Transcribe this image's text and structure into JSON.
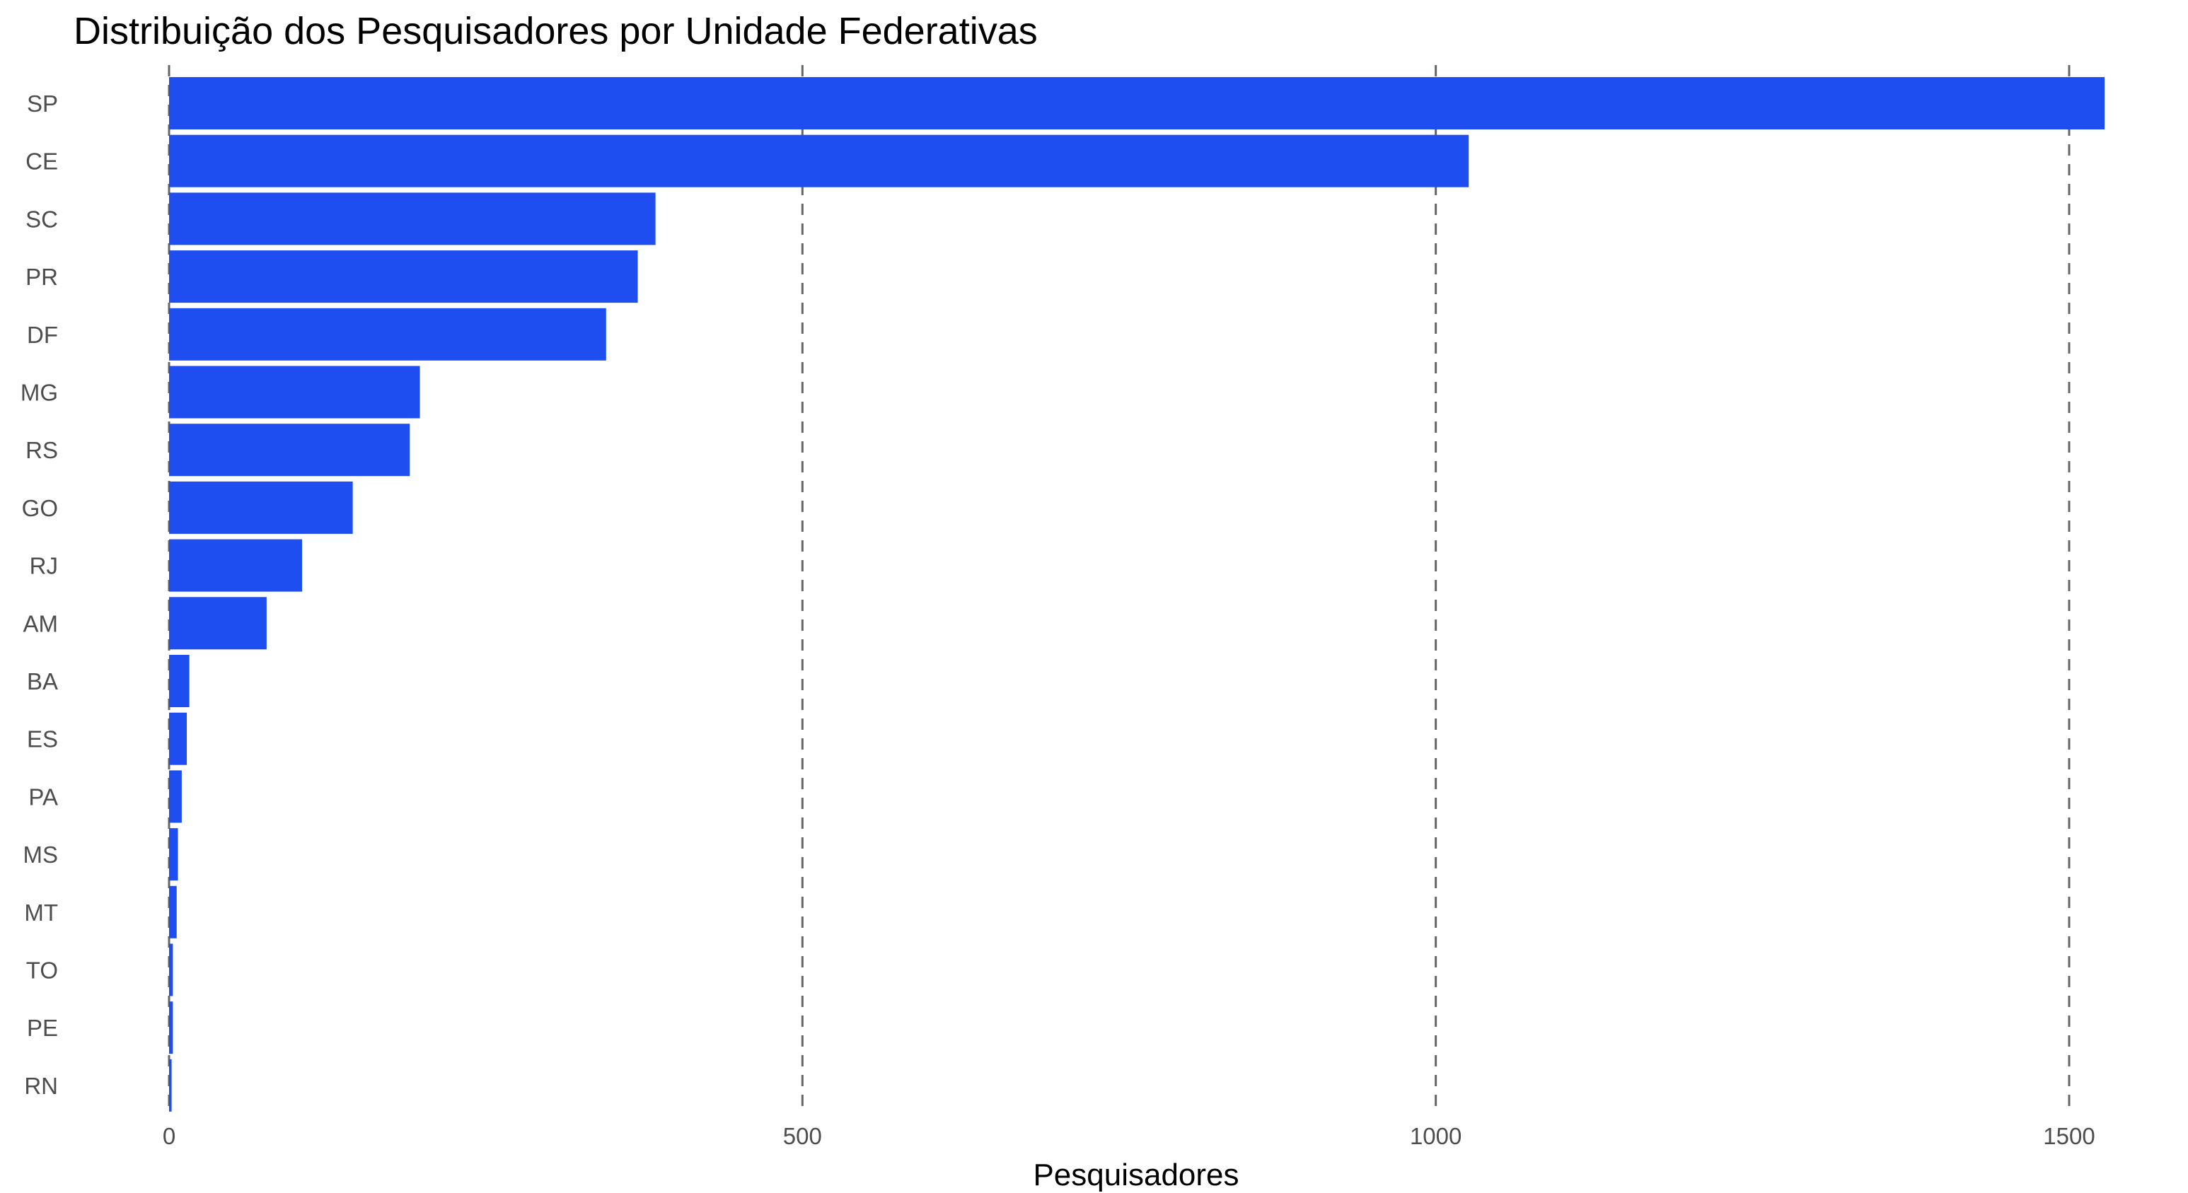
{
  "chart_data": {
    "type": "bar",
    "orientation": "horizontal",
    "title": "Distribuição dos Pesquisadores por Unidade Federativas",
    "xlabel": "Pesquisadores",
    "ylabel": "",
    "categories": [
      "SP",
      "CE",
      "SC",
      "PR",
      "DF",
      "MG",
      "RS",
      "GO",
      "RJ",
      "AM",
      "BA",
      "ES",
      "PA",
      "MS",
      "MT",
      "TO",
      "PE",
      "RN"
    ],
    "values": [
      1528,
      1026,
      384,
      370,
      345,
      198,
      190,
      145,
      105,
      77,
      16,
      14,
      10,
      7,
      6,
      3,
      3,
      2
    ],
    "x_ticks": [
      "0",
      "500",
      "1000",
      "1500"
    ],
    "x_tick_values": [
      0,
      500,
      1000,
      1500
    ],
    "xlim": [
      0,
      1528
    ],
    "grid": "vertical dashed",
    "bar_color": "#1e4ef0",
    "grid_color": "#666666"
  }
}
